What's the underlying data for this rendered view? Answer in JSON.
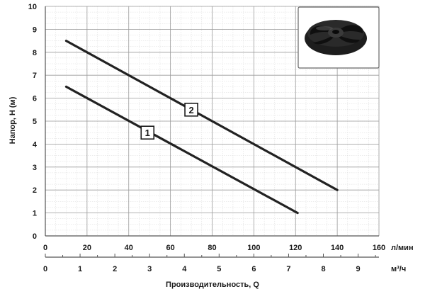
{
  "chart_data": {
    "type": "line",
    "ylabel": "Напор, H (м)",
    "xlabel": "Производительность, Q",
    "x_unit_top": "л/мин",
    "x_unit_bottom": "м³/ч",
    "xlim": [
      0,
      160
    ],
    "ylim": [
      0,
      10
    ],
    "x_ticks": [
      0,
      20,
      40,
      60,
      80,
      100,
      120,
      140,
      160
    ],
    "x2_lim": [
      0,
      9.6
    ],
    "x2_ticks": [
      0,
      1,
      2,
      3,
      4,
      5,
      6,
      7,
      8,
      9
    ],
    "y_ticks": [
      0,
      1,
      2,
      3,
      4,
      5,
      6,
      7,
      8,
      9,
      10
    ],
    "grid": true,
    "series": [
      {
        "name": "1",
        "x": [
          10,
          121
        ],
        "y": [
          6.5,
          1.0
        ],
        "label_at": [
          49,
          4.5
        ]
      },
      {
        "name": "2",
        "x": [
          10,
          140
        ],
        "y": [
          8.5,
          2.0
        ],
        "label_at": [
          70,
          5.5
        ]
      }
    ],
    "line_color": "#222222",
    "inset_image": "impeller-photo"
  }
}
